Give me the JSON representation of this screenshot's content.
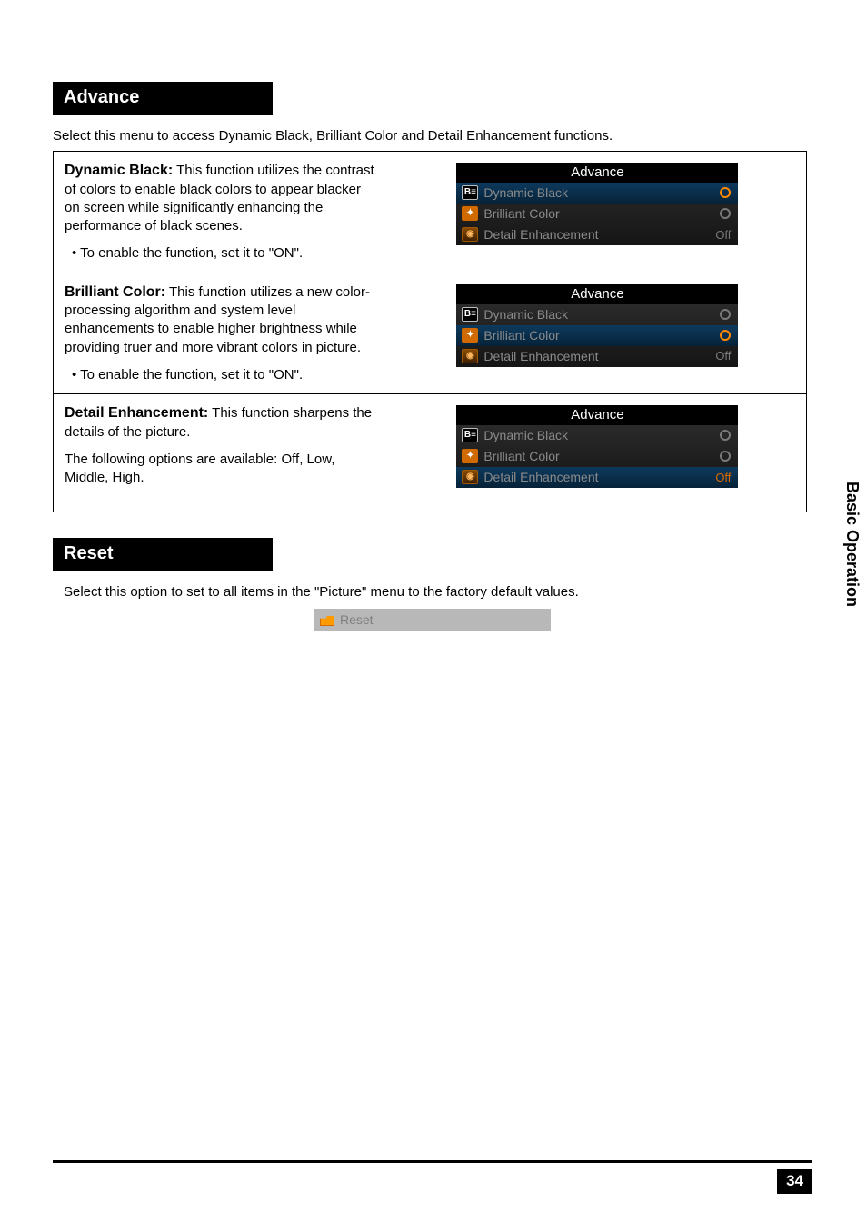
{
  "sideTab": "Basic Operation",
  "pageNumber": "34",
  "advance": {
    "header": "Advance",
    "intro": "Select this menu to access Dynamic Black, Brilliant Color and Detail Enhancement functions.",
    "rows": [
      {
        "titleBold": "Dynamic Black:",
        "desc": " This function utilizes the contrast of colors to enable black colors to appear blacker on screen while significantly enhancing the performance of black scenes.",
        "bullet": "To enable the function, set it to \"ON\".",
        "extra": "",
        "osd": {
          "title": "Advance",
          "items": [
            {
              "iconClass": "db",
              "iconText": "B≡",
              "label": "Dynamic Black",
              "valueType": "radio",
              "valueText": "",
              "highlighted": true,
              "selected": true
            },
            {
              "iconClass": "bc",
              "iconText": "✦",
              "label": "Brilliant  Color",
              "valueType": "radio",
              "valueText": "",
              "highlighted": false,
              "selected": false
            },
            {
              "iconClass": "de",
              "iconText": "◉",
              "label": "Detail Enhancement",
              "valueType": "text",
              "valueText": "Off",
              "highlighted": false,
              "selected": false
            }
          ]
        }
      },
      {
        "titleBold": "Brilliant Color:",
        "desc": " This function utilizes a new color-processing algorithm and system level enhancements to enable higher brightness while providing truer and more vibrant colors in picture.",
        "bullet": "To enable the function, set it to \"ON\".",
        "extra": "",
        "osd": {
          "title": "Advance",
          "items": [
            {
              "iconClass": "db",
              "iconText": "B≡",
              "label": "Dynamic Black",
              "valueType": "radio",
              "valueText": "",
              "highlighted": false,
              "selected": false
            },
            {
              "iconClass": "bc",
              "iconText": "✦",
              "label": "Brilliant  Color",
              "valueType": "radio",
              "valueText": "",
              "highlighted": true,
              "selected": true
            },
            {
              "iconClass": "de",
              "iconText": "◉",
              "label": "Detail Enhancement",
              "valueType": "text",
              "valueText": "Off",
              "highlighted": false,
              "selected": false
            }
          ]
        }
      },
      {
        "titleBold": "Detail Enhancement:",
        "desc": " This function sharpens the details of the picture.",
        "bullet": "",
        "extra": "The following options are available: Off, Low, Middle, High.",
        "osd": {
          "title": "Advance",
          "items": [
            {
              "iconClass": "db",
              "iconText": "B≡",
              "label": "Dynamic Black",
              "valueType": "radio",
              "valueText": "",
              "highlighted": false,
              "selected": false
            },
            {
              "iconClass": "bc",
              "iconText": "✦",
              "label": "Brilliant  Color",
              "valueType": "radio",
              "valueText": "",
              "highlighted": false,
              "selected": false
            },
            {
              "iconClass": "de",
              "iconText": "◉",
              "label": "Detail Enhancement",
              "valueType": "text",
              "valueText": "Off",
              "highlighted": true,
              "selected": true
            }
          ]
        }
      }
    ]
  },
  "reset": {
    "header": "Reset",
    "intro": "Select this option to set to all items in the \"Picture\" menu to the factory default values.",
    "stripLabel": "Reset"
  }
}
